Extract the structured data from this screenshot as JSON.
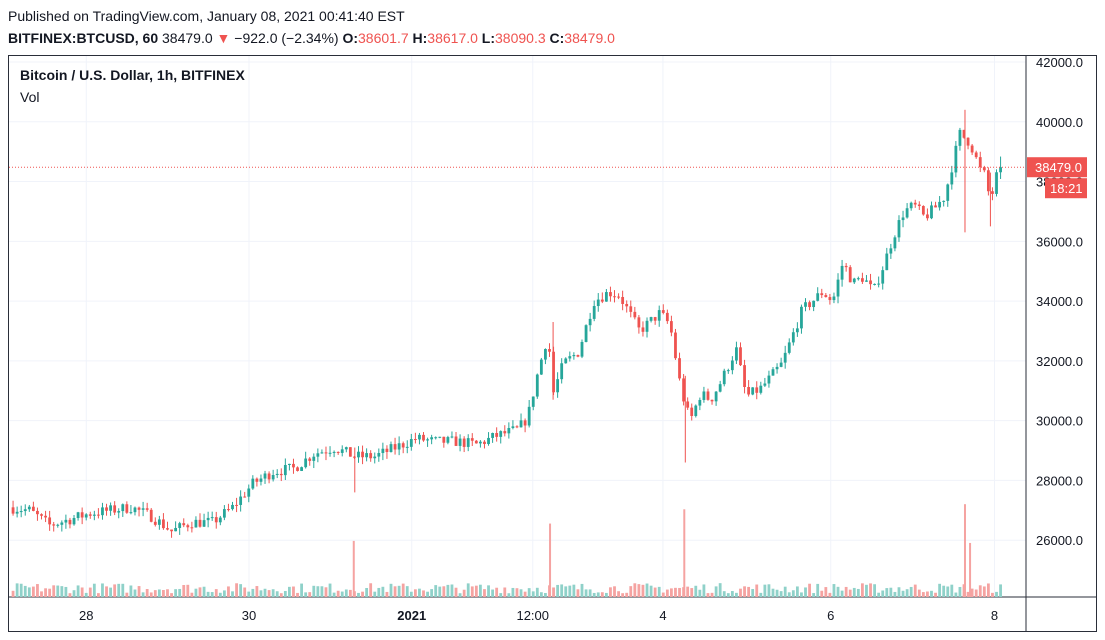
{
  "header": {
    "published": "Published on TradingView.com, January 08, 2021 00:41:40 EST",
    "symbol": "BITFINEX:BTCUSD, 60",
    "last": "38479.0",
    "change_arrow": "▼",
    "change": "−922.0 (−2.34%)",
    "o_label": "O:",
    "o_value": "38601.7",
    "h_label": "H:",
    "h_value": "38617.0",
    "l_label": "L:",
    "l_value": "38090.3",
    "c_label": "C:",
    "c_value": "38479.0"
  },
  "colors": {
    "up": "#26a69a",
    "down": "#ef5350",
    "vol_up": "#8fd1c9",
    "vol_down": "#f5a3a1",
    "grid": "#f0f3fa"
  },
  "chart_data": {
    "type": "candlestick",
    "title": "Bitcoin / U.S. Dollar, 1h, BITFINEX",
    "volume_label": "Vol",
    "ylim": [
      24100,
      42200
    ],
    "y_ticks": [
      26000,
      28000,
      30000,
      32000,
      34000,
      36000,
      38000,
      40000,
      42000
    ],
    "y_tick_labels": [
      "26000.0",
      "28000.0",
      "30000.0",
      "32000.0",
      "34000.0",
      "36000.0",
      "38000.0",
      "40000.0",
      "42000.0"
    ],
    "x_ticks": [
      {
        "label": "28",
        "bold": false,
        "pos": 0.076
      },
      {
        "label": "30",
        "bold": false,
        "pos": 0.236
      },
      {
        "label": "2021",
        "bold": true,
        "pos": 0.396
      },
      {
        "label": "12:00",
        "bold": false,
        "pos": 0.515
      },
      {
        "label": "4",
        "bold": false,
        "pos": 0.643
      },
      {
        "label": "6",
        "bold": false,
        "pos": 0.808
      },
      {
        "label": "8",
        "bold": false,
        "pos": 0.969
      }
    ],
    "last_price": 38479.0,
    "last_price_label": "38479.0",
    "countdown_label": "18:21",
    "path": [
      [
        0,
        27100
      ],
      [
        0.02,
        27000
      ],
      [
        0.04,
        26500
      ],
      [
        0.06,
        26700
      ],
      [
        0.08,
        26900
      ],
      [
        0.1,
        27000
      ],
      [
        0.12,
        27100
      ],
      [
        0.14,
        26800
      ],
      [
        0.16,
        26300
      ],
      [
        0.18,
        26600
      ],
      [
        0.2,
        26600
      ],
      [
        0.22,
        27100
      ],
      [
        0.24,
        27900
      ],
      [
        0.26,
        28300
      ],
      [
        0.28,
        28400
      ],
      [
        0.3,
        28900
      ],
      [
        0.32,
        29100
      ],
      [
        0.34,
        28800
      ],
      [
        0.36,
        28800
      ],
      [
        0.38,
        29100
      ],
      [
        0.4,
        29400
      ],
      [
        0.42,
        29300
      ],
      [
        0.44,
        29300
      ],
      [
        0.46,
        29200
      ],
      [
        0.48,
        29500
      ],
      [
        0.5,
        29700
      ],
      [
        0.51,
        30100
      ],
      [
        0.52,
        31600
      ],
      [
        0.53,
        32900
      ],
      [
        0.535,
        30900
      ],
      [
        0.545,
        31900
      ],
      [
        0.56,
        32300
      ],
      [
        0.575,
        34000
      ],
      [
        0.59,
        34300
      ],
      [
        0.6,
        34200
      ],
      [
        0.62,
        33000
      ],
      [
        0.63,
        33300
      ],
      [
        0.64,
        33600
      ],
      [
        0.65,
        33200
      ],
      [
        0.66,
        31200
      ],
      [
        0.665,
        30500
      ],
      [
        0.67,
        30000
      ],
      [
        0.68,
        30900
      ],
      [
        0.69,
        30700
      ],
      [
        0.7,
        31300
      ],
      [
        0.715,
        32400
      ],
      [
        0.725,
        30800
      ],
      [
        0.74,
        31100
      ],
      [
        0.76,
        31900
      ],
      [
        0.78,
        33700
      ],
      [
        0.8,
        34300
      ],
      [
        0.81,
        34000
      ],
      [
        0.82,
        35300
      ],
      [
        0.83,
        34600
      ],
      [
        0.84,
        34800
      ],
      [
        0.85,
        34300
      ],
      [
        0.86,
        35200
      ],
      [
        0.87,
        36200
      ],
      [
        0.88,
        37000
      ],
      [
        0.89,
        37200
      ],
      [
        0.9,
        36800
      ],
      [
        0.91,
        37100
      ],
      [
        0.92,
        37500
      ],
      [
        0.93,
        38900
      ],
      [
        0.935,
        39600
      ],
      [
        0.945,
        39300
      ],
      [
        0.955,
        38400
      ],
      [
        0.96,
        38200
      ],
      [
        0.965,
        37300
      ],
      [
        0.97,
        38100
      ],
      [
        0.975,
        38479
      ]
    ],
    "spikes": [
      {
        "pos": 0.34,
        "high": 29100,
        "low": 27600
      },
      {
        "pos": 0.535,
        "high": 33300,
        "low": 30700
      },
      {
        "pos": 0.665,
        "high": 31500,
        "low": 28600
      },
      {
        "pos": 0.94,
        "high": 40400,
        "low": 36300
      },
      {
        "pos": 0.965,
        "high": 38300,
        "low": 36500
      }
    ],
    "volume_peaks": [
      {
        "pos": 0.339,
        "value": 0.55
      },
      {
        "pos": 0.532,
        "value": 0.72
      },
      {
        "pos": 0.664,
        "value": 0.86
      },
      {
        "pos": 0.94,
        "value": 0.91
      },
      {
        "pos": 0.945,
        "value": 0.53
      }
    ]
  }
}
